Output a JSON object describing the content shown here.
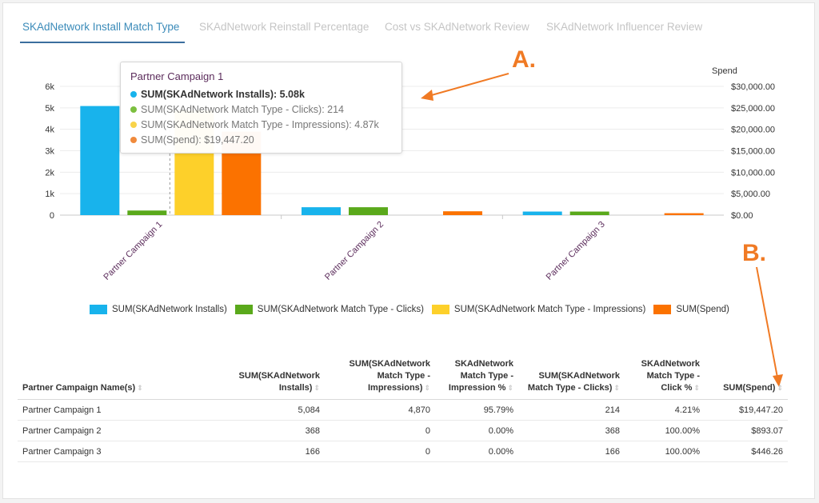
{
  "tabs": [
    {
      "label": "SKAdNetwork Install Match Type",
      "active": true
    },
    {
      "label": "SKAdNetwork Reinstall Percentage",
      "active": false
    },
    {
      "label": "Cost vs SKAdNetwork Review",
      "active": false
    },
    {
      "label": "SKAdNetwork Influencer Review",
      "active": false
    }
  ],
  "chart_data": {
    "type": "bar",
    "categories": [
      "Partner Campaign 1",
      "Partner Campaign 2",
      "Partner Campaign 3"
    ],
    "series": [
      {
        "name": "SUM(SKAdNetwork Installs)",
        "axis": "left",
        "color": "#18b3ec",
        "values": [
          5084,
          368,
          166
        ]
      },
      {
        "name": "SUM(SKAdNetwork Match Type - Clicks)",
        "axis": "left",
        "color": "#5aa91b",
        "values": [
          214,
          368,
          166
        ]
      },
      {
        "name": "SUM(SKAdNetwork Match Type - Impressions)",
        "axis": "left",
        "color": "#fdd02a",
        "values": [
          4870,
          0,
          0
        ]
      },
      {
        "name": "SUM(Spend)",
        "axis": "right",
        "color": "#fb7200",
        "values": [
          19447.2,
          893.07,
          446.26
        ]
      }
    ],
    "y_left": {
      "ticks": [
        "0",
        "1k",
        "2k",
        "3k",
        "4k",
        "5k",
        "6k"
      ],
      "ylim": [
        0,
        6000
      ]
    },
    "y_right": {
      "label": "Spend",
      "ticks": [
        "$0.00",
        "$5,000.00",
        "$10,000.00",
        "$15,000.00",
        "$20,000.00",
        "$25,000.00",
        "$30,000.00"
      ],
      "ylim": [
        0,
        30000
      ]
    },
    "legend_position": "bottom",
    "grid": true
  },
  "tooltip": {
    "title": "Partner Campaign 1",
    "rows": [
      {
        "text": "SUM(SKAdNetwork Installs): 5.08k",
        "color": "#18b3ec",
        "bold": true
      },
      {
        "text": "SUM(SKAdNetwork Match Type - Clicks): 214",
        "color": "#7cbf3f",
        "bold": false
      },
      {
        "text": "SUM(SKAdNetwork Match Type - Impressions): 4.87k",
        "color": "#f8d34a",
        "bold": false
      },
      {
        "text": "SUM(Spend): $19,447.20",
        "color": "#f08a3c",
        "bold": false
      }
    ]
  },
  "table": {
    "columns": [
      {
        "label": "Partner Campaign Name(s)",
        "align": "left"
      },
      {
        "label": "SUM(SKAdNetwork Installs)",
        "align": "right"
      },
      {
        "label": "SUM(SKAdNetwork Match Type - Impressions)",
        "align": "right"
      },
      {
        "label": "SKAdNetwork Match Type - Impression %",
        "align": "right"
      },
      {
        "label": "SUM(SKAdNetwork Match Type - Clicks)",
        "align": "right"
      },
      {
        "label": "SKAdNetwork Match Type - Click %",
        "align": "right"
      },
      {
        "label": "SUM(Spend)",
        "align": "right"
      }
    ],
    "rows": [
      [
        "Partner Campaign 1",
        "5,084",
        "4,870",
        "95.79%",
        "214",
        "4.21%",
        "$19,447.20"
      ],
      [
        "Partner Campaign 2",
        "368",
        "0",
        "0.00%",
        "368",
        "100.00%",
        "$893.07"
      ],
      [
        "Partner Campaign 3",
        "166",
        "0",
        "0.00%",
        "166",
        "100.00%",
        "$446.26"
      ]
    ]
  },
  "annotations": {
    "a": "A.",
    "b": "B.",
    "color": "#f07a24"
  }
}
